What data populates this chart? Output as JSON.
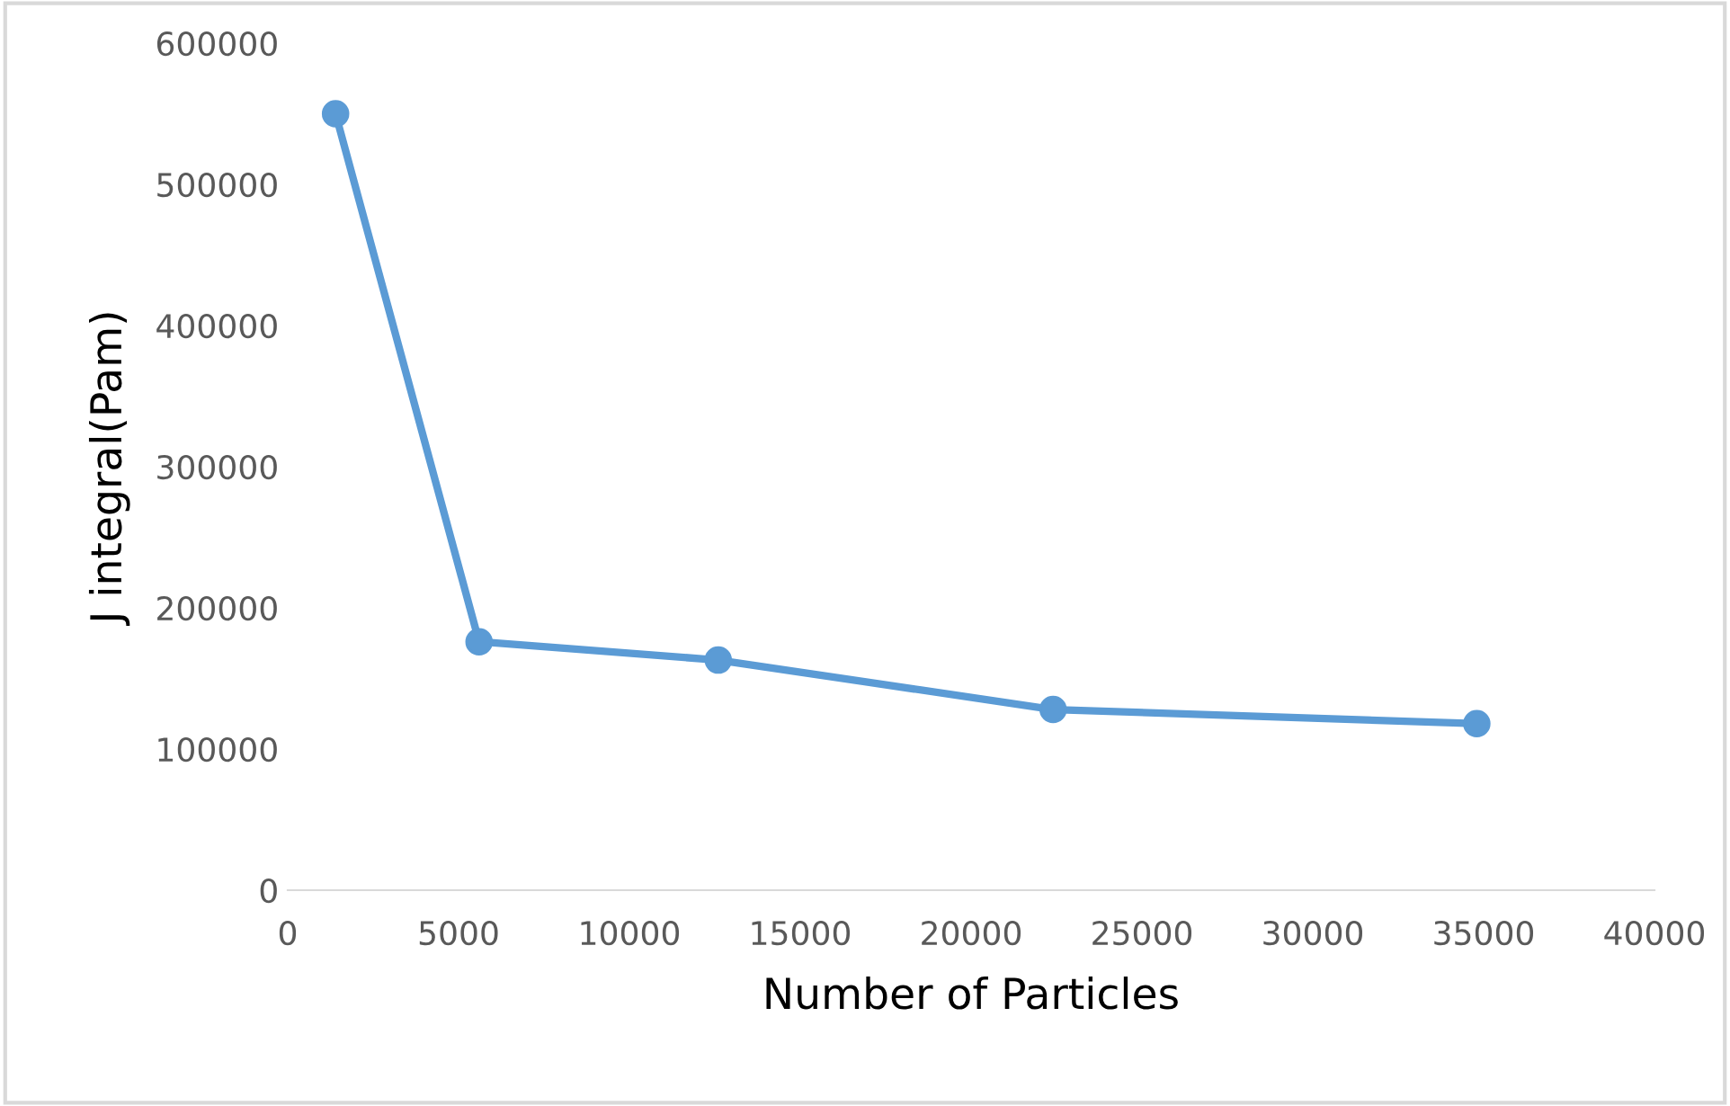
{
  "chart_data": {
    "type": "line",
    "xlabel": "Number of Particles",
    "ylabel": "J integral(Pam)",
    "x": [
      1400,
      5600,
      12600,
      22400,
      34800
    ],
    "series": [
      {
        "color": "#5b9bd5",
        "values": [
          550000,
          176000,
          163000,
          128000,
          118000
        ]
      }
    ],
    "xlim": [
      0,
      40000
    ],
    "xticks": [
      0,
      5000,
      10000,
      15000,
      20000,
      25000,
      30000,
      35000,
      40000
    ],
    "ylim": [
      0,
      600000
    ],
    "yticks": [
      0,
      100000,
      200000,
      300000,
      400000,
      500000,
      600000
    ],
    "marker": "circle",
    "line_style": "solid",
    "grid": false,
    "legend": false
  }
}
